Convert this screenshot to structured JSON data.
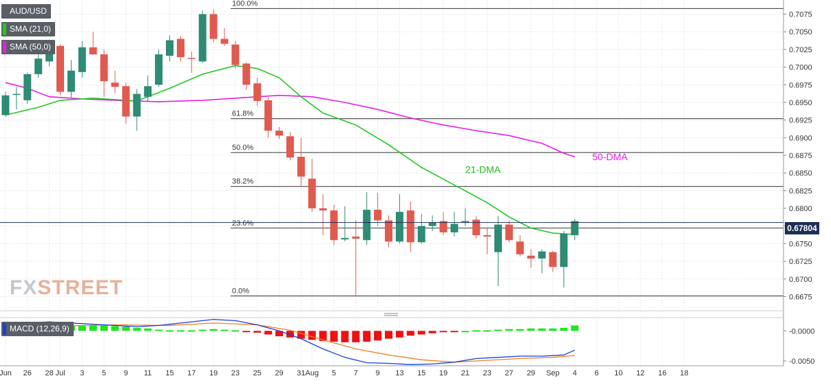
{
  "legend": {
    "symbol": "AUD/USD",
    "sma21_label": "SMA (21,0)",
    "sma50_label": "SMA (50,0)",
    "macd_label": "MACD (12,26,9)",
    "sma21_color": "#1fc81f",
    "sma50_color": "#e61ee6"
  },
  "watermark": {
    "part1": "FX",
    "part2": "STREET"
  },
  "colors": {
    "bull": "#2e8b74",
    "bear": "#e05a4f",
    "macd_line": "#1b3fd6",
    "signal_line": "#f07f24",
    "hist_pos": "#1ee61e",
    "hist_neg": "#ee1111",
    "current_price_badge": "#1d2f55"
  },
  "chart_data": [
    {
      "type": "candlestick",
      "title": "AUD/USD",
      "ylim": [
        0.6655,
        0.7095
      ],
      "y_ticks": [
        "0.6675",
        "0.6700",
        "0.6725",
        "0.6750",
        "0.6775",
        "0.6800",
        "0.6825",
        "0.6850",
        "0.6875",
        "0.6900",
        "0.6925",
        "0.6950",
        "0.6975",
        "0.7000",
        "0.7025",
        "0.7050",
        "0.7075"
      ],
      "x_ticks": [
        {
          "label": "Jun",
          "i": 0
        },
        {
          "label": "26",
          "i": 2
        },
        {
          "label": "28",
          "i": 4
        },
        {
          "label": "Jul",
          "i": 5
        },
        {
          "label": "3",
          "i": 7
        },
        {
          "label": "5",
          "i": 9
        },
        {
          "label": "9",
          "i": 11
        },
        {
          "label": "11",
          "i": 13
        },
        {
          "label": "15",
          "i": 15
        },
        {
          "label": "17",
          "i": 17
        },
        {
          "label": "19",
          "i": 19
        },
        {
          "label": "23",
          "i": 21
        },
        {
          "label": "25",
          "i": 23
        },
        {
          "label": "29",
          "i": 25
        },
        {
          "label": "31",
          "i": 27
        },
        {
          "label": "Aug",
          "i": 28
        },
        {
          "label": "5",
          "i": 30
        },
        {
          "label": "7",
          "i": 32
        },
        {
          "label": "9",
          "i": 34
        },
        {
          "label": "13",
          "i": 36
        },
        {
          "label": "15",
          "i": 38
        },
        {
          "label": "19",
          "i": 40
        },
        {
          "label": "21",
          "i": 42
        },
        {
          "label": "23",
          "i": 44
        },
        {
          "label": "27",
          "i": 46
        },
        {
          "label": "29",
          "i": 48
        },
        {
          "label": "Sep",
          "i": 50
        },
        {
          "label": "4",
          "i": 52
        },
        {
          "label": "6",
          "i": 54
        },
        {
          "label": "10",
          "i": 56
        },
        {
          "label": "12",
          "i": 58
        },
        {
          "label": "16",
          "i": 60
        },
        {
          "label": "18",
          "i": 62
        }
      ],
      "candles": [
        {
          "o": 0.6932,
          "h": 0.6965,
          "l": 0.693,
          "c": 0.696
        },
        {
          "o": 0.6962,
          "h": 0.6972,
          "l": 0.694,
          "c": 0.6962
        },
        {
          "o": 0.6953,
          "h": 0.6992,
          "l": 0.6948,
          "c": 0.699
        },
        {
          "o": 0.699,
          "h": 0.7018,
          "l": 0.6985,
          "c": 0.7012
        },
        {
          "o": 0.7008,
          "h": 0.703,
          "l": 0.7001,
          "c": 0.7022
        },
        {
          "o": 0.703,
          "h": 0.7032,
          "l": 0.696,
          "c": 0.6965
        },
        {
          "o": 0.6965,
          "h": 0.701,
          "l": 0.6957,
          "c": 0.6995
        },
        {
          "o": 0.6993,
          "h": 0.7037,
          "l": 0.6985,
          "c": 0.7028
        },
        {
          "o": 0.7028,
          "h": 0.705,
          "l": 0.7017,
          "c": 0.7018
        },
        {
          "o": 0.7018,
          "h": 0.7025,
          "l": 0.6958,
          "c": 0.698
        },
        {
          "o": 0.6978,
          "h": 0.6995,
          "l": 0.6963,
          "c": 0.6972
        },
        {
          "o": 0.6973,
          "h": 0.6978,
          "l": 0.692,
          "c": 0.693
        },
        {
          "o": 0.693,
          "h": 0.6969,
          "l": 0.691,
          "c": 0.6962
        },
        {
          "o": 0.6958,
          "h": 0.6988,
          "l": 0.6952,
          "c": 0.6973
        },
        {
          "o": 0.6975,
          "h": 0.7025,
          "l": 0.6972,
          "c": 0.7018
        },
        {
          "o": 0.7016,
          "h": 0.7045,
          "l": 0.7008,
          "c": 0.7038
        },
        {
          "o": 0.704,
          "h": 0.7044,
          "l": 0.7008,
          "c": 0.7014
        },
        {
          "o": 0.7013,
          "h": 0.7022,
          "l": 0.6992,
          "c": 0.7012
        },
        {
          "o": 0.7008,
          "h": 0.708,
          "l": 0.7006,
          "c": 0.7075
        },
        {
          "o": 0.7075,
          "h": 0.7082,
          "l": 0.7035,
          "c": 0.704
        },
        {
          "o": 0.704,
          "h": 0.7055,
          "l": 0.703,
          "c": 0.7033
        },
        {
          "o": 0.7032,
          "h": 0.7037,
          "l": 0.6998,
          "c": 0.7003
        },
        {
          "o": 0.7005,
          "h": 0.7007,
          "l": 0.6968,
          "c": 0.6975
        },
        {
          "o": 0.6977,
          "h": 0.6985,
          "l": 0.6945,
          "c": 0.6952
        },
        {
          "o": 0.6953,
          "h": 0.6957,
          "l": 0.69,
          "c": 0.691
        },
        {
          "o": 0.691,
          "h": 0.6915,
          "l": 0.6898,
          "c": 0.6903
        },
        {
          "o": 0.6902,
          "h": 0.6908,
          "l": 0.6868,
          "c": 0.6872
        },
        {
          "o": 0.6873,
          "h": 0.69,
          "l": 0.6832,
          "c": 0.6845
        },
        {
          "o": 0.6842,
          "h": 0.687,
          "l": 0.6795,
          "c": 0.68
        },
        {
          "o": 0.68,
          "h": 0.682,
          "l": 0.6762,
          "c": 0.6797
        },
        {
          "o": 0.6797,
          "h": 0.6805,
          "l": 0.6748,
          "c": 0.6755
        },
        {
          "o": 0.6756,
          "h": 0.6803,
          "l": 0.6753,
          "c": 0.6758
        },
        {
          "o": 0.676,
          "h": 0.6783,
          "l": 0.6677,
          "c": 0.6757
        },
        {
          "o": 0.6755,
          "h": 0.6823,
          "l": 0.6748,
          "c": 0.6798
        },
        {
          "o": 0.6798,
          "h": 0.6822,
          "l": 0.6775,
          "c": 0.6783
        },
        {
          "o": 0.6783,
          "h": 0.679,
          "l": 0.6745,
          "c": 0.6753
        },
        {
          "o": 0.6753,
          "h": 0.682,
          "l": 0.675,
          "c": 0.6795
        },
        {
          "o": 0.6797,
          "h": 0.681,
          "l": 0.6738,
          "c": 0.6752
        },
        {
          "o": 0.6752,
          "h": 0.6792,
          "l": 0.675,
          "c": 0.6775
        },
        {
          "o": 0.6775,
          "h": 0.679,
          "l": 0.6768,
          "c": 0.678
        },
        {
          "o": 0.6782,
          "h": 0.6795,
          "l": 0.6762,
          "c": 0.6766
        },
        {
          "o": 0.6766,
          "h": 0.6795,
          "l": 0.676,
          "c": 0.6778
        },
        {
          "o": 0.678,
          "h": 0.68,
          "l": 0.6775,
          "c": 0.6782
        },
        {
          "o": 0.6784,
          "h": 0.6789,
          "l": 0.6757,
          "c": 0.6762
        },
        {
          "o": 0.6762,
          "h": 0.6772,
          "l": 0.6735,
          "c": 0.676
        },
        {
          "o": 0.6738,
          "h": 0.6789,
          "l": 0.669,
          "c": 0.6777
        },
        {
          "o": 0.6777,
          "h": 0.6782,
          "l": 0.6752,
          "c": 0.6755
        },
        {
          "o": 0.6753,
          "h": 0.6762,
          "l": 0.6732,
          "c": 0.6735
        },
        {
          "o": 0.6733,
          "h": 0.6742,
          "l": 0.6716,
          "c": 0.6729
        },
        {
          "o": 0.6729,
          "h": 0.6742,
          "l": 0.6708,
          "c": 0.6739
        },
        {
          "o": 0.6738,
          "h": 0.674,
          "l": 0.671,
          "c": 0.6717
        },
        {
          "o": 0.6717,
          "h": 0.6768,
          "l": 0.6688,
          "c": 0.6764
        },
        {
          "o": 0.6762,
          "h": 0.6785,
          "l": 0.6755,
          "c": 0.6782
        }
      ],
      "sma21": [
        {
          "i": 0,
          "v": 0.6932
        },
        {
          "i": 3,
          "v": 0.6943
        },
        {
          "i": 5,
          "v": 0.6953
        },
        {
          "i": 8,
          "v": 0.6956
        },
        {
          "i": 12,
          "v": 0.6952
        },
        {
          "i": 15,
          "v": 0.697
        },
        {
          "i": 18,
          "v": 0.699
        },
        {
          "i": 21,
          "v": 0.7002
        },
        {
          "i": 23,
          "v": 0.6998
        },
        {
          "i": 25,
          "v": 0.6985
        },
        {
          "i": 27,
          "v": 0.6958
        },
        {
          "i": 29,
          "v": 0.6935
        },
        {
          "i": 32,
          "v": 0.6918
        },
        {
          "i": 35,
          "v": 0.689
        },
        {
          "i": 38,
          "v": 0.6858
        },
        {
          "i": 41,
          "v": 0.6833
        },
        {
          "i": 44,
          "v": 0.6808
        },
        {
          "i": 46,
          "v": 0.6788
        },
        {
          "i": 48,
          "v": 0.6772
        },
        {
          "i": 50,
          "v": 0.6765
        },
        {
          "i": 52,
          "v": 0.6763
        }
      ],
      "sma50": [
        {
          "i": 0,
          "v": 0.6978
        },
        {
          "i": 2,
          "v": 0.697
        },
        {
          "i": 4,
          "v": 0.6958
        },
        {
          "i": 7,
          "v": 0.6955
        },
        {
          "i": 10,
          "v": 0.6953
        },
        {
          "i": 14,
          "v": 0.6951
        },
        {
          "i": 18,
          "v": 0.6953
        },
        {
          "i": 22,
          "v": 0.6957
        },
        {
          "i": 25,
          "v": 0.696
        },
        {
          "i": 28,
          "v": 0.6958
        },
        {
          "i": 31,
          "v": 0.695
        },
        {
          "i": 34,
          "v": 0.694
        },
        {
          "i": 37,
          "v": 0.6928
        },
        {
          "i": 40,
          "v": 0.6918
        },
        {
          "i": 43,
          "v": 0.691
        },
        {
          "i": 46,
          "v": 0.6903
        },
        {
          "i": 49,
          "v": 0.6892
        },
        {
          "i": 51,
          "v": 0.6878
        },
        {
          "i": 52,
          "v": 0.6873
        }
      ],
      "fib_levels": [
        {
          "label": "100.0%",
          "value": 0.7083
        },
        {
          "label": "61.8%",
          "value": 0.6927
        },
        {
          "label": "50.0%",
          "value": 0.6879
        },
        {
          "label": "38.2%",
          "value": 0.6831
        },
        {
          "label": "23.6%",
          "value": 0.6772
        },
        {
          "label": "0.0%",
          "value": 0.6676
        }
      ],
      "annotations": [
        {
          "text": "21-DMA",
          "i": 42,
          "v": 0.685
        },
        {
          "text": "50-DMA",
          "i": 53.6,
          "v": 0.6868
        }
      ],
      "current_price": {
        "label": "0.67804",
        "value": 0.678
      }
    },
    {
      "type": "macd",
      "title": "MACD (12,26,9)",
      "ylim": [
        -0.0058,
        0.0022
      ],
      "y_ticks": [
        "-0.0000",
        "-0.0050"
      ],
      "histogram": [
        0.0003,
        0.0004,
        0.0005,
        0.0006,
        0.0007,
        0.0008,
        0.0009,
        0.0009,
        0.001,
        0.0009,
        0.0008,
        0.0007,
        0.0005,
        0.0004,
        0.0002,
        0.0001,
        0.0001,
        0.0001,
        0.0002,
        0.0003,
        0.0002,
        0.0001,
        -0.0001,
        -0.0003,
        -0.0006,
        -0.0009,
        -0.0011,
        -0.0013,
        -0.0015,
        -0.0017,
        -0.0018,
        -0.0019,
        -0.0019,
        -0.0018,
        -0.0016,
        -0.0013,
        -0.0011,
        -0.0008,
        -0.0006,
        -0.0004,
        -0.0002,
        -0.0001,
        0.0,
        0.0001,
        0.0001,
        0.0002,
        0.0003,
        0.0003,
        0.0004,
        0.0004,
        0.0004,
        0.0005,
        0.0009
      ],
      "macd": [
        {
          "i": 0,
          "v": 0.0012
        },
        {
          "i": 4,
          "v": 0.0015
        },
        {
          "i": 8,
          "v": 0.0011
        },
        {
          "i": 12,
          "v": 0.0007
        },
        {
          "i": 14,
          "v": 0.0009
        },
        {
          "i": 17,
          "v": 0.0015
        },
        {
          "i": 19,
          "v": 0.0019
        },
        {
          "i": 21,
          "v": 0.0017
        },
        {
          "i": 23,
          "v": 0.001
        },
        {
          "i": 25,
          "v": 0.0
        },
        {
          "i": 27,
          "v": -0.0013
        },
        {
          "i": 29,
          "v": -0.003
        },
        {
          "i": 31,
          "v": -0.0044
        },
        {
          "i": 33,
          "v": -0.0053
        },
        {
          "i": 35,
          "v": -0.0054
        },
        {
          "i": 37,
          "v": -0.0056
        },
        {
          "i": 39,
          "v": -0.0055
        },
        {
          "i": 41,
          "v": -0.0052
        },
        {
          "i": 43,
          "v": -0.0046
        },
        {
          "i": 45,
          "v": -0.0044
        },
        {
          "i": 47,
          "v": -0.0042
        },
        {
          "i": 49,
          "v": -0.0042
        },
        {
          "i": 51,
          "v": -0.004
        },
        {
          "i": 52,
          "v": -0.0032
        }
      ],
      "signal": [
        {
          "i": 0,
          "v": 0.0004
        },
        {
          "i": 5,
          "v": 0.0008
        },
        {
          "i": 10,
          "v": 0.001
        },
        {
          "i": 15,
          "v": 0.0009
        },
        {
          "i": 19,
          "v": 0.0013
        },
        {
          "i": 23,
          "v": 0.001
        },
        {
          "i": 26,
          "v": 0.0001
        },
        {
          "i": 29,
          "v": -0.0015
        },
        {
          "i": 32,
          "v": -0.003
        },
        {
          "i": 35,
          "v": -0.004
        },
        {
          "i": 38,
          "v": -0.0048
        },
        {
          "i": 41,
          "v": -0.0052
        },
        {
          "i": 44,
          "v": -0.0049
        },
        {
          "i": 47,
          "v": -0.0046
        },
        {
          "i": 50,
          "v": -0.0044
        },
        {
          "i": 52,
          "v": -0.0041
        }
      ]
    }
  ]
}
